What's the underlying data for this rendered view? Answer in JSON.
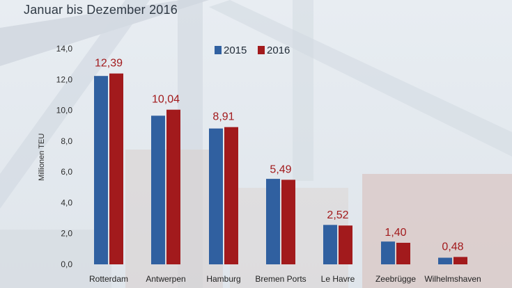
{
  "chart_data": {
    "type": "bar",
    "subtitle": "Januar bis Dezember 2016",
    "ylabel": "Millionen TEU",
    "ylim": [
      0,
      14
    ],
    "yticks": [
      "0,0",
      "2,0",
      "4,0",
      "6,0",
      "8,0",
      "10,0",
      "12,0",
      "14,0"
    ],
    "categories": [
      "Rotterdam",
      "Antwerpen",
      "Hamburg",
      "Bremen Ports",
      "Le Havre",
      "Zeebrügge",
      "Wilhelmshaven"
    ],
    "series": [
      {
        "name": "2015",
        "values": [
          12.23,
          9.65,
          8.82,
          5.55,
          2.56,
          1.48,
          0.43
        ],
        "color": "#3060a0"
      },
      {
        "name": "2016",
        "values": [
          12.39,
          10.04,
          8.91,
          5.49,
          2.52,
          1.4,
          0.48
        ],
        "color": "#a21a1c"
      }
    ],
    "data_labels": [
      "12,39",
      "10,04",
      "8,91",
      "5,49",
      "2,52",
      "1,40",
      "0,48"
    ],
    "legend_position": "top",
    "grid": false
  }
}
